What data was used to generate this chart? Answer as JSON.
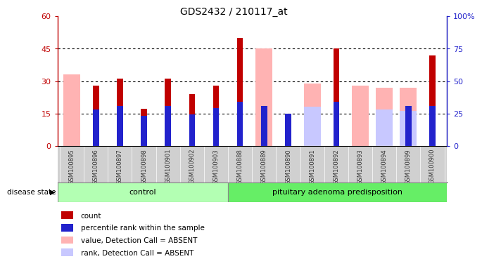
{
  "title": "GDS2432 / 210117_at",
  "samples": [
    "GSM100895",
    "GSM100896",
    "GSM100897",
    "GSM100898",
    "GSM100901",
    "GSM100902",
    "GSM100903",
    "GSM100888",
    "GSM100889",
    "GSM100890",
    "GSM100891",
    "GSM100892",
    "GSM100893",
    "GSM100894",
    "GSM100899",
    "GSM100900"
  ],
  "count": [
    null,
    28,
    31,
    17,
    31,
    24,
    28,
    50,
    null,
    13,
    null,
    45,
    null,
    null,
    null,
    42
  ],
  "percentile_rank": [
    null,
    28,
    31,
    23,
    31,
    24,
    29,
    34,
    31,
    25,
    null,
    34,
    null,
    null,
    31,
    31
  ],
  "value_absent": [
    33,
    null,
    null,
    null,
    null,
    null,
    null,
    null,
    45,
    null,
    29,
    null,
    28,
    27,
    27,
    null
  ],
  "rank_absent": [
    null,
    null,
    null,
    null,
    null,
    null,
    null,
    null,
    null,
    null,
    30,
    null,
    null,
    28,
    27,
    null
  ],
  "n_control": 7,
  "n_pituitary": 9,
  "left_ylim": [
    0,
    60
  ],
  "left_yticks": [
    0,
    15,
    30,
    45,
    60
  ],
  "left_yticklabels": [
    "0",
    "15",
    "30",
    "45",
    "60"
  ],
  "right_yticks": [
    0,
    25,
    50,
    75,
    100
  ],
  "right_yticklabels": [
    "0",
    "25",
    "50",
    "75",
    "100%"
  ],
  "color_count": "#c00000",
  "color_percentile": "#2222cc",
  "color_value_absent": "#ffb3b3",
  "color_rank_absent": "#c8c8ff",
  "color_control_bg": "#b3ffb3",
  "color_pituitary_bg": "#66ee66",
  "group_label_control": "control",
  "group_label_pituitary": "pituitary adenoma predisposition",
  "disease_state_label": "disease state",
  "legend_items": [
    "count",
    "percentile rank within the sample",
    "value, Detection Call = ABSENT",
    "rank, Detection Call = ABSENT"
  ]
}
